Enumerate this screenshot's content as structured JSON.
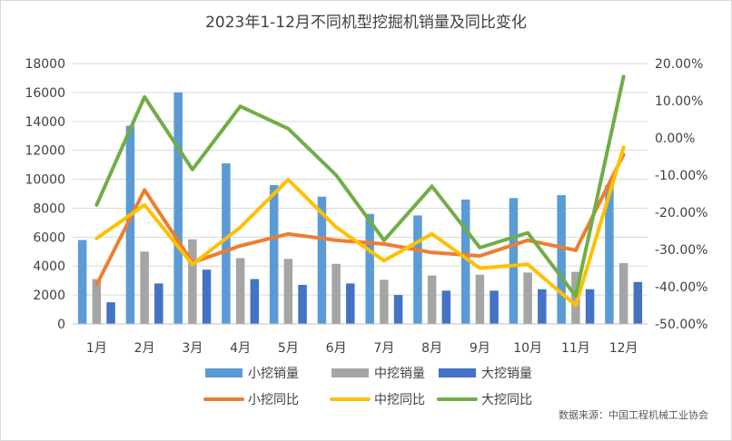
{
  "chart_data": {
    "type": "bar",
    "title": "2023年1-12月不同机型挖掘机销量及同比变化",
    "categories": [
      "1月",
      "2月",
      "3月",
      "4月",
      "5月",
      "6月",
      "7月",
      "8月",
      "9月",
      "10月",
      "11月",
      "12月"
    ],
    "y_left": {
      "range": [
        0,
        18000
      ],
      "ticks": [
        "0",
        "2000",
        "4000",
        "6000",
        "8000",
        "10000",
        "12000",
        "14000",
        "16000",
        "18000"
      ]
    },
    "y_right": {
      "range": [
        -50,
        20
      ],
      "ticks": [
        "-50.00%",
        "-40.00%",
        "-30.00%",
        "-20.00%",
        "-10.00%",
        "0.00%",
        "10.00%",
        "20.00%"
      ]
    },
    "bar_series": [
      {
        "name": "小挖销量",
        "color": "#5b9bd5",
        "values": [
          5800,
          13700,
          16000,
          11100,
          9600,
          8800,
          7600,
          7500,
          8600,
          8700,
          8900,
          9600
        ]
      },
      {
        "name": "中挖销量",
        "color": "#a5a5a5",
        "values": [
          3100,
          5000,
          5850,
          4550,
          4500,
          4150,
          3050,
          3350,
          3400,
          3550,
          3600,
          4200
        ]
      },
      {
        "name": "大挖销量",
        "color": "#4472c4",
        "values": [
          1500,
          2800,
          3750,
          3100,
          2700,
          2800,
          2000,
          2300,
          2300,
          2400,
          2400,
          2900
        ]
      }
    ],
    "line_series": [
      {
        "name": "小挖同比",
        "color": "#ed7d31",
        "values": [
          -39.5,
          -14,
          -33.5,
          -29,
          -25.8,
          -27.5,
          -28.5,
          -30.8,
          -31.7,
          -27.5,
          -30.2,
          -4.5
        ]
      },
      {
        "name": "中挖同比",
        "color": "#ffc000",
        "values": [
          -27,
          -18,
          -34,
          -24,
          -11.2,
          -24,
          -33,
          -25.8,
          -35,
          -34,
          -45,
          -2.5
        ]
      },
      {
        "name": "大挖同比",
        "color": "#70ad47",
        "values": [
          -18,
          11,
          -8.5,
          8.5,
          2.5,
          -10,
          -27.5,
          -13,
          -29.5,
          -25.5,
          -42.5,
          16.5
        ]
      }
    ],
    "legend_position": "bottom",
    "grid": true
  },
  "source_note": "数据来源：中国工程机械工业协会"
}
